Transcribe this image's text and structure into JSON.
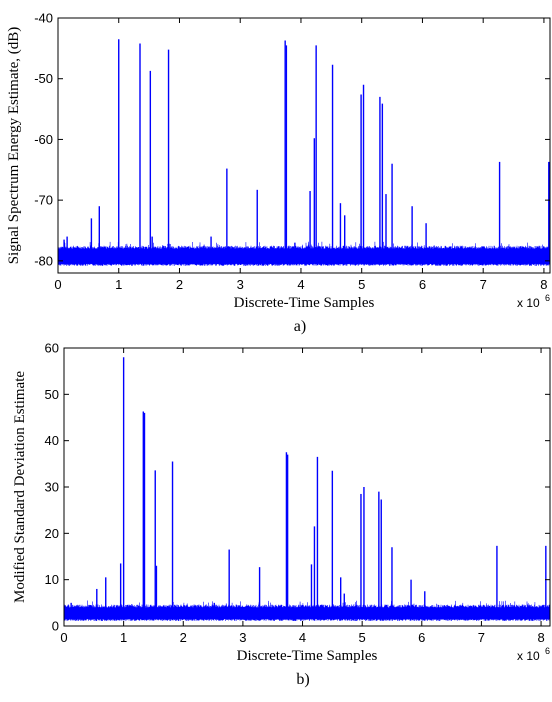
{
  "colors": {
    "series": "#0000ff",
    "axis": "#000000"
  },
  "chart_data": [
    {
      "type": "line",
      "xlabel": "Discrete-Time Samples",
      "ylabel": "Signal Spectrum Energy Estimate, (dB)",
      "caption": "a)",
      "x_multiplier": "x 10",
      "x_multiplier_exp": "6",
      "xlim": [
        0,
        8.1
      ],
      "ylim": [
        -82,
        -40
      ],
      "xticks": [
        0,
        1,
        2,
        3,
        4,
        5,
        6,
        7,
        8
      ],
      "yticks": [
        -80,
        -70,
        -60,
        -50,
        -40
      ],
      "grid": false,
      "legend": "none",
      "baseline": {
        "from": -80.5,
        "to": -78
      },
      "spikes": [
        {
          "x": 0.1,
          "y": -76.5
        },
        {
          "x": 0.15,
          "y": -76
        },
        {
          "x": 0.55,
          "y": -73
        },
        {
          "x": 0.68,
          "y": -71
        },
        {
          "x": 1.0,
          "y": -43.5
        },
        {
          "x": 1.35,
          "y": -44.2
        },
        {
          "x": 1.52,
          "y": -48.7
        },
        {
          "x": 1.55,
          "y": -76
        },
        {
          "x": 1.82,
          "y": -45.2
        },
        {
          "x": 2.52,
          "y": -76
        },
        {
          "x": 2.78,
          "y": -64.8
        },
        {
          "x": 3.28,
          "y": -68.3
        },
        {
          "x": 3.74,
          "y": -43.7
        },
        {
          "x": 3.76,
          "y": -44.5
        },
        {
          "x": 3.9,
          "y": -77
        },
        {
          "x": 4.15,
          "y": -68.5
        },
        {
          "x": 4.22,
          "y": -59.8
        },
        {
          "x": 4.25,
          "y": -44.5
        },
        {
          "x": 4.52,
          "y": -47.7
        },
        {
          "x": 4.65,
          "y": -70.5
        },
        {
          "x": 4.72,
          "y": -72.5
        },
        {
          "x": 4.99,
          "y": -52.6
        },
        {
          "x": 5.03,
          "y": -51
        },
        {
          "x": 5.3,
          "y": -53
        },
        {
          "x": 5.34,
          "y": -54.1
        },
        {
          "x": 5.4,
          "y": -69
        },
        {
          "x": 5.5,
          "y": -64
        },
        {
          "x": 5.83,
          "y": -71
        },
        {
          "x": 6.06,
          "y": -73.8
        },
        {
          "x": 7.27,
          "y": -63.7
        },
        {
          "x": 8.08,
          "y": -63.7
        }
      ]
    },
    {
      "type": "line",
      "xlabel": "Discrete-Time Samples",
      "ylabel": "Modified Standard Deviation Estimate",
      "caption": "b)",
      "x_multiplier": "x 10",
      "x_multiplier_exp": "6",
      "xlim": [
        0,
        8.15
      ],
      "ylim": [
        0,
        60
      ],
      "xticks": [
        0,
        1,
        2,
        3,
        4,
        5,
        6,
        7,
        8
      ],
      "yticks": [
        0,
        10,
        20,
        30,
        40,
        50,
        60
      ],
      "grid": false,
      "legend": "none",
      "baseline": {
        "from": 1.5,
        "to": 4
      },
      "spikes": [
        {
          "x": 0.12,
          "y": 5
        },
        {
          "x": 0.55,
          "y": 8
        },
        {
          "x": 0.7,
          "y": 10.5
        },
        {
          "x": 0.95,
          "y": 13.5
        },
        {
          "x": 1.0,
          "y": 58
        },
        {
          "x": 1.33,
          "y": 46.3
        },
        {
          "x": 1.35,
          "y": 46
        },
        {
          "x": 1.53,
          "y": 33.6
        },
        {
          "x": 1.55,
          "y": 13
        },
        {
          "x": 1.82,
          "y": 35.5
        },
        {
          "x": 2.52,
          "y": 5
        },
        {
          "x": 2.77,
          "y": 16.5
        },
        {
          "x": 3.28,
          "y": 12.7
        },
        {
          "x": 3.73,
          "y": 37.5
        },
        {
          "x": 3.75,
          "y": 37
        },
        {
          "x": 4.15,
          "y": 13.3
        },
        {
          "x": 4.2,
          "y": 21.5
        },
        {
          "x": 4.25,
          "y": 36.5
        },
        {
          "x": 4.5,
          "y": 33.5
        },
        {
          "x": 4.64,
          "y": 10.5
        },
        {
          "x": 4.7,
          "y": 7
        },
        {
          "x": 4.98,
          "y": 28.5
        },
        {
          "x": 5.03,
          "y": 30
        },
        {
          "x": 5.28,
          "y": 29
        },
        {
          "x": 5.32,
          "y": 27.3
        },
        {
          "x": 5.5,
          "y": 17
        },
        {
          "x": 5.82,
          "y": 10
        },
        {
          "x": 6.05,
          "y": 7.5
        },
        {
          "x": 7.26,
          "y": 17.3
        },
        {
          "x": 8.08,
          "y": 17.3
        }
      ]
    }
  ]
}
